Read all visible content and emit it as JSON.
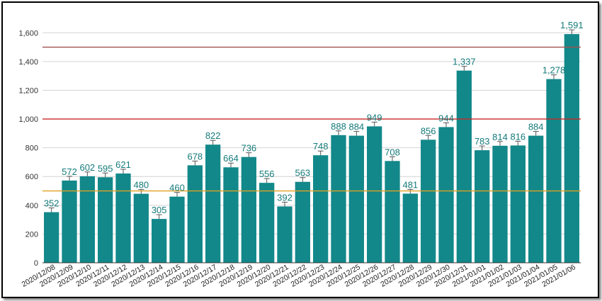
{
  "chart_data": {
    "type": "bar",
    "title": "",
    "xlabel": "",
    "ylabel": "",
    "ylim": [
      0,
      1700
    ],
    "yticks": [
      0,
      200,
      400,
      600,
      800,
      1000,
      1200,
      1400,
      1600
    ],
    "ytick_labels": [
      "0",
      "200",
      "400",
      "600",
      "800",
      "1,000",
      "1,200",
      "1,400",
      "1,600"
    ],
    "grid": true,
    "bar_color": "#12888a",
    "label_color": "#157a7a",
    "categories": [
      "2020/12/08",
      "2020/12/09",
      "2020/12/10",
      "2020/12/11",
      "2020/12/12",
      "2020/12/13",
      "2020/12/14",
      "2020/12/15",
      "2020/12/16",
      "2020/12/17",
      "2020/12/18",
      "2020/12/19",
      "2020/12/20",
      "2020/12/21",
      "2020/12/22",
      "2020/12/23",
      "2020/12/24",
      "2020/12/25",
      "2020/12/26",
      "2020/12/27",
      "2020/12/28",
      "2020/12/29",
      "2020/12/30",
      "2020/12/31",
      "2021/01/01",
      "2021/01/02",
      "2021/01/03",
      "2021/01/04",
      "2021/01/05",
      "2021/01/06"
    ],
    "values": [
      352,
      572,
      602,
      595,
      621,
      480,
      305,
      460,
      678,
      822,
      664,
      736,
      556,
      392,
      563,
      748,
      888,
      884,
      949,
      708,
      481,
      856,
      944,
      1337,
      783,
      814,
      816,
      884,
      1278,
      1591
    ],
    "value_labels": [
      "352",
      "572",
      "602",
      "595",
      "621",
      "480",
      "305",
      "460",
      "678",
      "822",
      "664",
      "736",
      "556",
      "392",
      "563",
      "748",
      "888",
      "884",
      "949",
      "708",
      "481",
      "856",
      "944",
      "1,337",
      "783",
      "814",
      "816",
      "884",
      "1,278",
      "1,591"
    ],
    "reference_lines": [
      {
        "value": 500,
        "color": "#e0a020"
      },
      {
        "value": 1000,
        "color": "#c82828"
      },
      {
        "value": 1500,
        "color": "#a05050"
      }
    ]
  }
}
